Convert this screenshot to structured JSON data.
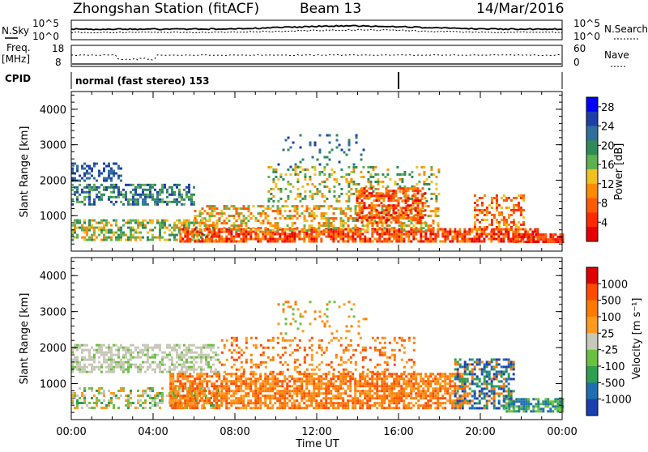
{
  "header": {
    "station_title": "Zhongshan Station (fitACF)",
    "beam": "Beam 13",
    "date": "14/Mar/2016"
  },
  "top_panels": {
    "sky": {
      "left_label": "N.Sky",
      "left_ticks": [
        "10^5",
        "10^0"
      ],
      "right_label": "N.Search",
      "right_ticks": [
        "10^5",
        "10^0"
      ]
    },
    "freq": {
      "left_label_1": "Freq.",
      "left_label_2": "[MHz]",
      "left_ticks": [
        "18",
        "8"
      ],
      "right_label": "Nave",
      "right_ticks": [
        "60",
        "0"
      ]
    },
    "cpid": {
      "label": "CPID",
      "text": "normal (fast stereo) 153"
    }
  },
  "colors": {
    "power_bar": [
      "#0000ff",
      "#1e3fa8",
      "#2f6f9a",
      "#2e8b57",
      "#5fb050",
      "#f0c020",
      "#ff8c00",
      "#ff5a00",
      "#ff2a00",
      "#e60000"
    ],
    "velocity_bar": [
      "#e00000",
      "#ff4a00",
      "#ff7a00",
      "#ff9a20",
      "#c8c8b8",
      "#6cc040",
      "#2e9e50",
      "#1f6fb0",
      "#1a3fb0"
    ]
  },
  "chart_data": [
    {
      "type": "heatmap",
      "name": "power",
      "ylabel": "Slant Range [km]",
      "yticks": [
        1000,
        2000,
        3000,
        4000
      ],
      "ylim": [
        0,
        4500
      ],
      "xlabel": "Time UT",
      "xticks": [
        "00:00",
        "04:00",
        "08:00",
        "12:00",
        "16:00",
        "20:00",
        "00:00"
      ],
      "xlim_hours": [
        0,
        24
      ],
      "colorbar": {
        "label": "Power [dB]",
        "ticks": [
          4,
          8,
          12,
          16,
          20,
          24,
          28
        ],
        "range": [
          0,
          30
        ]
      }
    },
    {
      "type": "heatmap",
      "name": "velocity",
      "ylabel": "Slant Range [km]",
      "yticks": [
        1000,
        2000,
        3000,
        4000
      ],
      "ylim": [
        0,
        4500
      ],
      "xlabel": "Time UT",
      "xticks": [
        "00:00",
        "04:00",
        "08:00",
        "12:00",
        "16:00",
        "20:00",
        "00:00"
      ],
      "xlim_hours": [
        0,
        24
      ],
      "colorbar": {
        "label": "Velocity [m s⁻¹]",
        "ticks": [
          1000,
          500,
          100,
          25,
          -25,
          -100,
          -500,
          -1000
        ]
      }
    }
  ],
  "x_axis_label": "Time UT"
}
